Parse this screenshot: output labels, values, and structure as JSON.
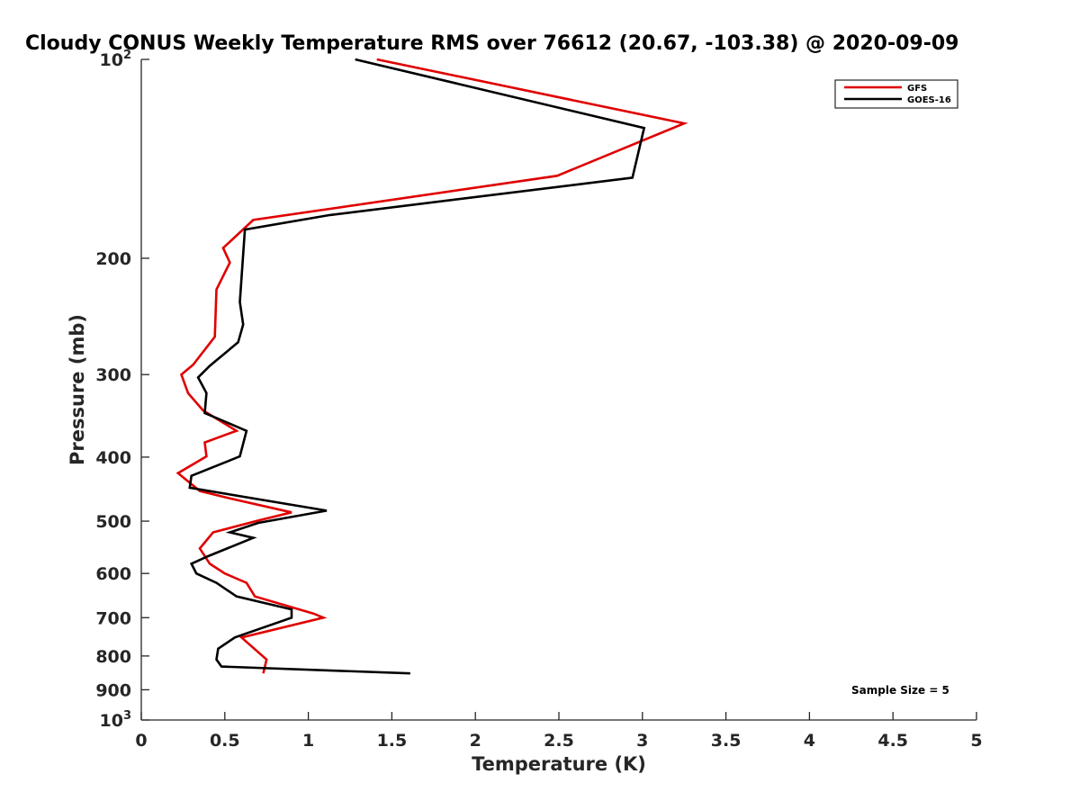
{
  "chart_data": {
    "type": "line",
    "title": "Cloudy CONUS Weekly Temperature RMS over 76612 (20.67, -103.38) @ 2020-09-09",
    "xlabel": "Temperature (K)",
    "ylabel": "Pressure (mb)",
    "xlim": [
      0,
      5
    ],
    "ylim": [
      100,
      1000
    ],
    "y_scale": "log",
    "y_reversed": true,
    "grid": false,
    "legend_position": "top-right",
    "x_ticks": [
      {
        "value": 0,
        "label": "0"
      },
      {
        "value": 0.5,
        "label": "0.5"
      },
      {
        "value": 1,
        "label": "1"
      },
      {
        "value": 1.5,
        "label": "1.5"
      },
      {
        "value": 2,
        "label": "2"
      },
      {
        "value": 2.5,
        "label": "2.5"
      },
      {
        "value": 3,
        "label": "3"
      },
      {
        "value": 3.5,
        "label": "3.5"
      },
      {
        "value": 4,
        "label": "4"
      },
      {
        "value": 4.5,
        "label": "4.5"
      },
      {
        "value": 5,
        "label": "5"
      }
    ],
    "y_ticks": [
      {
        "value": 100,
        "base": "10",
        "exp": "2"
      },
      {
        "value": 200,
        "label": "200"
      },
      {
        "value": 300,
        "label": "300"
      },
      {
        "value": 400,
        "label": "400"
      },
      {
        "value": 500,
        "label": "500"
      },
      {
        "value": 600,
        "label": "600"
      },
      {
        "value": 700,
        "label": "700"
      },
      {
        "value": 800,
        "label": "800"
      },
      {
        "value": 900,
        "label": "900"
      },
      {
        "value": 1000,
        "base": "10",
        "exp": "3"
      }
    ],
    "series": [
      {
        "name": "GFS",
        "color": "#e00000",
        "points": [
          [
            1.41,
            100
          ],
          [
            3.25,
            125
          ],
          [
            2.49,
            150
          ],
          [
            0.67,
            175
          ],
          [
            0.49,
            193
          ],
          [
            0.53,
            203
          ],
          [
            0.45,
            223
          ],
          [
            0.44,
            263
          ],
          [
            0.31,
            290
          ],
          [
            0.24,
            300
          ],
          [
            0.28,
            320
          ],
          [
            0.37,
            340
          ],
          [
            0.57,
            365
          ],
          [
            0.38,
            380
          ],
          [
            0.39,
            399
          ],
          [
            0.22,
            423
          ],
          [
            0.35,
            450
          ],
          [
            0.53,
            462
          ],
          [
            0.9,
            485
          ],
          [
            0.7,
            499
          ],
          [
            0.43,
            520
          ],
          [
            0.35,
            550
          ],
          [
            0.41,
            580
          ],
          [
            0.5,
            600
          ],
          [
            0.63,
            620
          ],
          [
            0.68,
            650
          ],
          [
            1.03,
            690
          ],
          [
            1.09,
            700
          ],
          [
            0.6,
            750
          ],
          [
            0.75,
            810
          ],
          [
            0.73,
            850
          ]
        ]
      },
      {
        "name": "GOES-16",
        "color": "#000000",
        "points": [
          [
            1.28,
            100
          ],
          [
            3.01,
            127
          ],
          [
            2.94,
            151
          ],
          [
            1.13,
            172
          ],
          [
            0.62,
            181
          ],
          [
            0.59,
            233
          ],
          [
            0.61,
            252
          ],
          [
            0.58,
            268
          ],
          [
            0.41,
            291
          ],
          [
            0.34,
            303
          ],
          [
            0.39,
            320
          ],
          [
            0.38,
            343
          ],
          [
            0.63,
            365
          ],
          [
            0.59,
            399
          ],
          [
            0.3,
            427
          ],
          [
            0.29,
            445
          ],
          [
            1.11,
            482
          ],
          [
            0.7,
            503
          ],
          [
            0.53,
            520
          ],
          [
            0.67,
            530
          ],
          [
            0.4,
            565
          ],
          [
            0.3,
            580
          ],
          [
            0.33,
            600
          ],
          [
            0.45,
            620
          ],
          [
            0.57,
            650
          ],
          [
            0.9,
            680
          ],
          [
            0.9,
            700
          ],
          [
            0.56,
            750
          ],
          [
            0.46,
            780
          ],
          [
            0.45,
            810
          ],
          [
            0.48,
            830
          ],
          [
            1.61,
            850
          ]
        ]
      }
    ],
    "legend_entries": [
      "GFS",
      "GOES-16"
    ],
    "annotation": "Sample Size = 5"
  }
}
